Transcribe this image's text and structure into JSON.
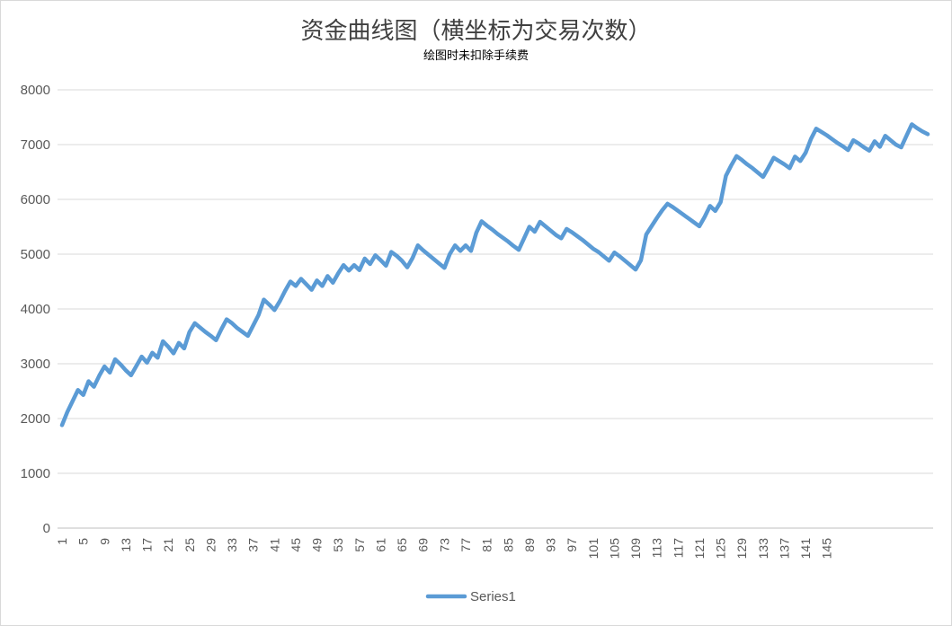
{
  "title": "资金曲线图（横坐标为交易次数）",
  "subtitle": "绘图时未扣除手续费",
  "chart_data": {
    "type": "line",
    "title": "资金曲线图（横坐标为交易次数）",
    "subtitle": "绘图时未扣除手续费",
    "xlabel": "",
    "ylabel": "",
    "ylim": [
      0,
      8000
    ],
    "yticks": [
      0,
      1000,
      2000,
      3000,
      4000,
      5000,
      6000,
      7000,
      8000
    ],
    "x_tick_labels": [
      "1",
      "5",
      "9",
      "13",
      "17",
      "21",
      "25",
      "29",
      "33",
      "37",
      "41",
      "45",
      "49",
      "53",
      "57",
      "61",
      "65",
      "69",
      "73",
      "77",
      "81",
      "85",
      "89",
      "93",
      "97",
      "101",
      "105",
      "109",
      "113",
      "117",
      "121",
      "125",
      "129",
      "133",
      "137",
      "141",
      "145"
    ],
    "grid": "horizontal",
    "legend": "bottom",
    "line_color": "#5b9bd5",
    "series": [
      {
        "name": "Series1",
        "values": [
          1880,
          2120,
          2320,
          2520,
          2430,
          2680,
          2580,
          2780,
          2950,
          2840,
          3080,
          2990,
          2880,
          2790,
          2960,
          3130,
          3020,
          3200,
          3110,
          3410,
          3310,
          3190,
          3380,
          3280,
          3580,
          3740,
          3660,
          3580,
          3510,
          3430,
          3630,
          3810,
          3740,
          3650,
          3580,
          3510,
          3700,
          3890,
          4170,
          4080,
          3980,
          4140,
          4330,
          4500,
          4420,
          4550,
          4450,
          4350,
          4520,
          4420,
          4600,
          4480,
          4650,
          4800,
          4700,
          4800,
          4710,
          4920,
          4820,
          4980,
          4890,
          4790,
          5040,
          4970,
          4880,
          4760,
          4930,
          5160,
          5070,
          4990,
          4910,
          4830,
          4750,
          5000,
          5160,
          5060,
          5160,
          5060,
          5390,
          5600,
          5520,
          5450,
          5370,
          5300,
          5230,
          5150,
          5080,
          5290,
          5500,
          5410,
          5590,
          5510,
          5430,
          5350,
          5290,
          5460,
          5400,
          5330,
          5260,
          5180,
          5100,
          5040,
          4960,
          4880,
          5030,
          4960,
          4880,
          4800,
          4720,
          4890,
          5360,
          5510,
          5660,
          5800,
          5920,
          5860,
          5790,
          5720,
          5650,
          5580,
          5510,
          5680,
          5880,
          5790,
          5950,
          6430,
          6620,
          6790,
          6720,
          6640,
          6570,
          6490,
          6410,
          6580,
          6760,
          6700,
          6640,
          6570,
          6780,
          6700,
          6850,
          7100,
          7290,
          7230,
          7170,
          7100,
          7030,
          6970,
          6900,
          7080,
          7020,
          6950,
          6890,
          7060,
          6960,
          7160,
          7080,
          7000,
          6950,
          7160,
          7370,
          7300,
          7240,
          7190
        ]
      }
    ]
  }
}
